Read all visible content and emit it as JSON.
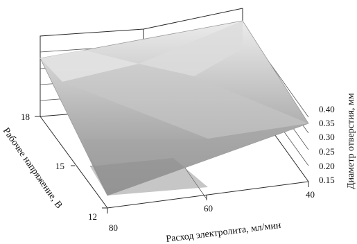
{
  "chart_data": {
    "type": "surface",
    "title": "",
    "x_axis": {
      "label": "Расход электролита, мл/мин",
      "ticks": [
        "80",
        "60",
        "40"
      ],
      "range": [
        40,
        80
      ]
    },
    "y_axis": {
      "label": "Рабочее напряжение, В",
      "ticks": [
        "12",
        "15",
        "18"
      ],
      "range": [
        12,
        18
      ]
    },
    "z_axis": {
      "label": "Диаметр отверстия, мм",
      "ticks": [
        "0.15",
        "0.20",
        "0.25",
        "0.30",
        "0.35",
        "0.40"
      ],
      "range": [
        0.15,
        0.4
      ]
    },
    "corner_values": [
      {
        "flow": 80,
        "voltage": 12,
        "diameter": 0.21
      },
      {
        "flow": 40,
        "voltage": 12,
        "diameter": 0.2
      },
      {
        "flow": 80,
        "voltage": 18,
        "diameter": 0.36
      },
      {
        "flow": 40,
        "voltage": 18,
        "diameter": 0.41
      }
    ],
    "grid": true,
    "legend": "none",
    "colors": {
      "surface_low": "#8e8e8e",
      "surface_high": "#ececec",
      "frame": "#2a2a2a",
      "gridline": "#555555"
    }
  }
}
